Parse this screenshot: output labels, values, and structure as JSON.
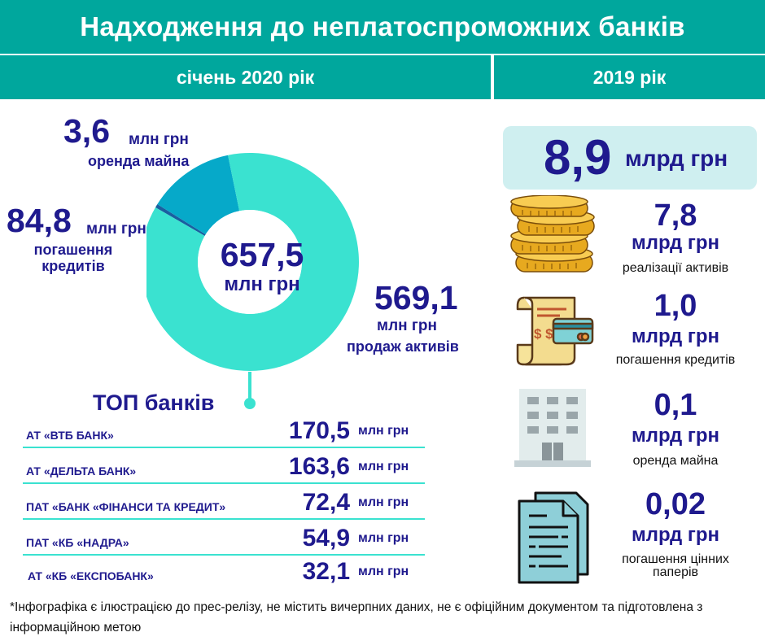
{
  "header": {
    "title": "Надходження до неплатоспроможних банків"
  },
  "columns": {
    "left": "січень 2020 рік",
    "right": "2019 рік"
  },
  "donut": {
    "total_value": "657,5",
    "total_unit": "млн грн",
    "segments": [
      {
        "value_text": "3,6",
        "unit": "млн грн",
        "label": "оренда майна",
        "color": "#1a5fa0"
      },
      {
        "value_text": "84,8",
        "unit": "млн грн",
        "label_lines": [
          "погашення",
          "кредитів"
        ],
        "color": "#06a9c9"
      },
      {
        "value_text": "569,1",
        "unit": "млн грн",
        "label": "продаж активів",
        "color": "#3ae2d0"
      }
    ]
  },
  "chart_data": [
    {
      "type": "pie",
      "categories": [
        "оренда майна",
        "погашення кредитів",
        "продаж активів"
      ],
      "values": [
        3.6,
        84.8,
        569.1
      ],
      "unit": "млн грн",
      "total": 657.5
    },
    {
      "type": "table",
      "title": "ТОП банків",
      "categories": [
        "АТ «ВТБ БАНК»",
        "АТ «ДЕЛЬТА БАНК»",
        "ПАТ «БАНК «ФІНАНСИ ТА КРЕДИТ»",
        "ПАТ «КБ «НАДРА»",
        "АТ «КБ «ЕКСПОБАНК»"
      ],
      "values": [
        170.5,
        163.6,
        72.4,
        54.9,
        32.1
      ],
      "unit": "млн грн"
    },
    {
      "type": "table",
      "categories": [
        "реалізації активів",
        "погашення кредитів",
        "оренда майна",
        "погашення цінних паперів"
      ],
      "values": [
        7.8,
        1.0,
        0.1,
        0.02
      ],
      "unit": "млрд грн",
      "total": 8.9
    }
  ],
  "top_banks": {
    "title": "ТОП банків",
    "rows": [
      {
        "name": "АТ «ВТБ БАНК»",
        "value": "170,5",
        "unit": "млн грн"
      },
      {
        "name": "АТ «ДЕЛЬТА БАНК»",
        "value": "163,6",
        "unit": "млн грн"
      },
      {
        "name": "ПАТ «БАНК «ФІНАНСИ ТА КРЕДИТ»",
        "value": "72,4",
        "unit": "млн грн"
      },
      {
        "name": "ПАТ «КБ «НАДРА»",
        "value": "54,9",
        "unit": "млн грн"
      },
      {
        "name": "АТ «КБ «ЕКСПОБАНК»",
        "value": "32,1",
        "unit": "млн грн"
      }
    ]
  },
  "year2019": {
    "total_value": "8,9",
    "total_unit": "млрд грн",
    "items": [
      {
        "value": "7,8",
        "unit": "млрд грн",
        "label": "реалізації активів",
        "icon": "coins-icon"
      },
      {
        "value": "1,0",
        "unit": "млрд грн",
        "label": "погашення кредитів",
        "icon": "receipt-card-icon"
      },
      {
        "value": "0,1",
        "unit": "млрд грн",
        "label": "оренда майна",
        "icon": "building-icon"
      },
      {
        "value": "0,02",
        "unit": "млрд грн",
        "label_lines": [
          "погашення цінних",
          "паперів"
        ],
        "icon": "documents-icon"
      }
    ]
  },
  "footnote": "*Інфографіка є ілюстрацією до прес-релізу, не містить вичерпних даних, не є офіційним документом та підготовлена з інформаційною метою"
}
